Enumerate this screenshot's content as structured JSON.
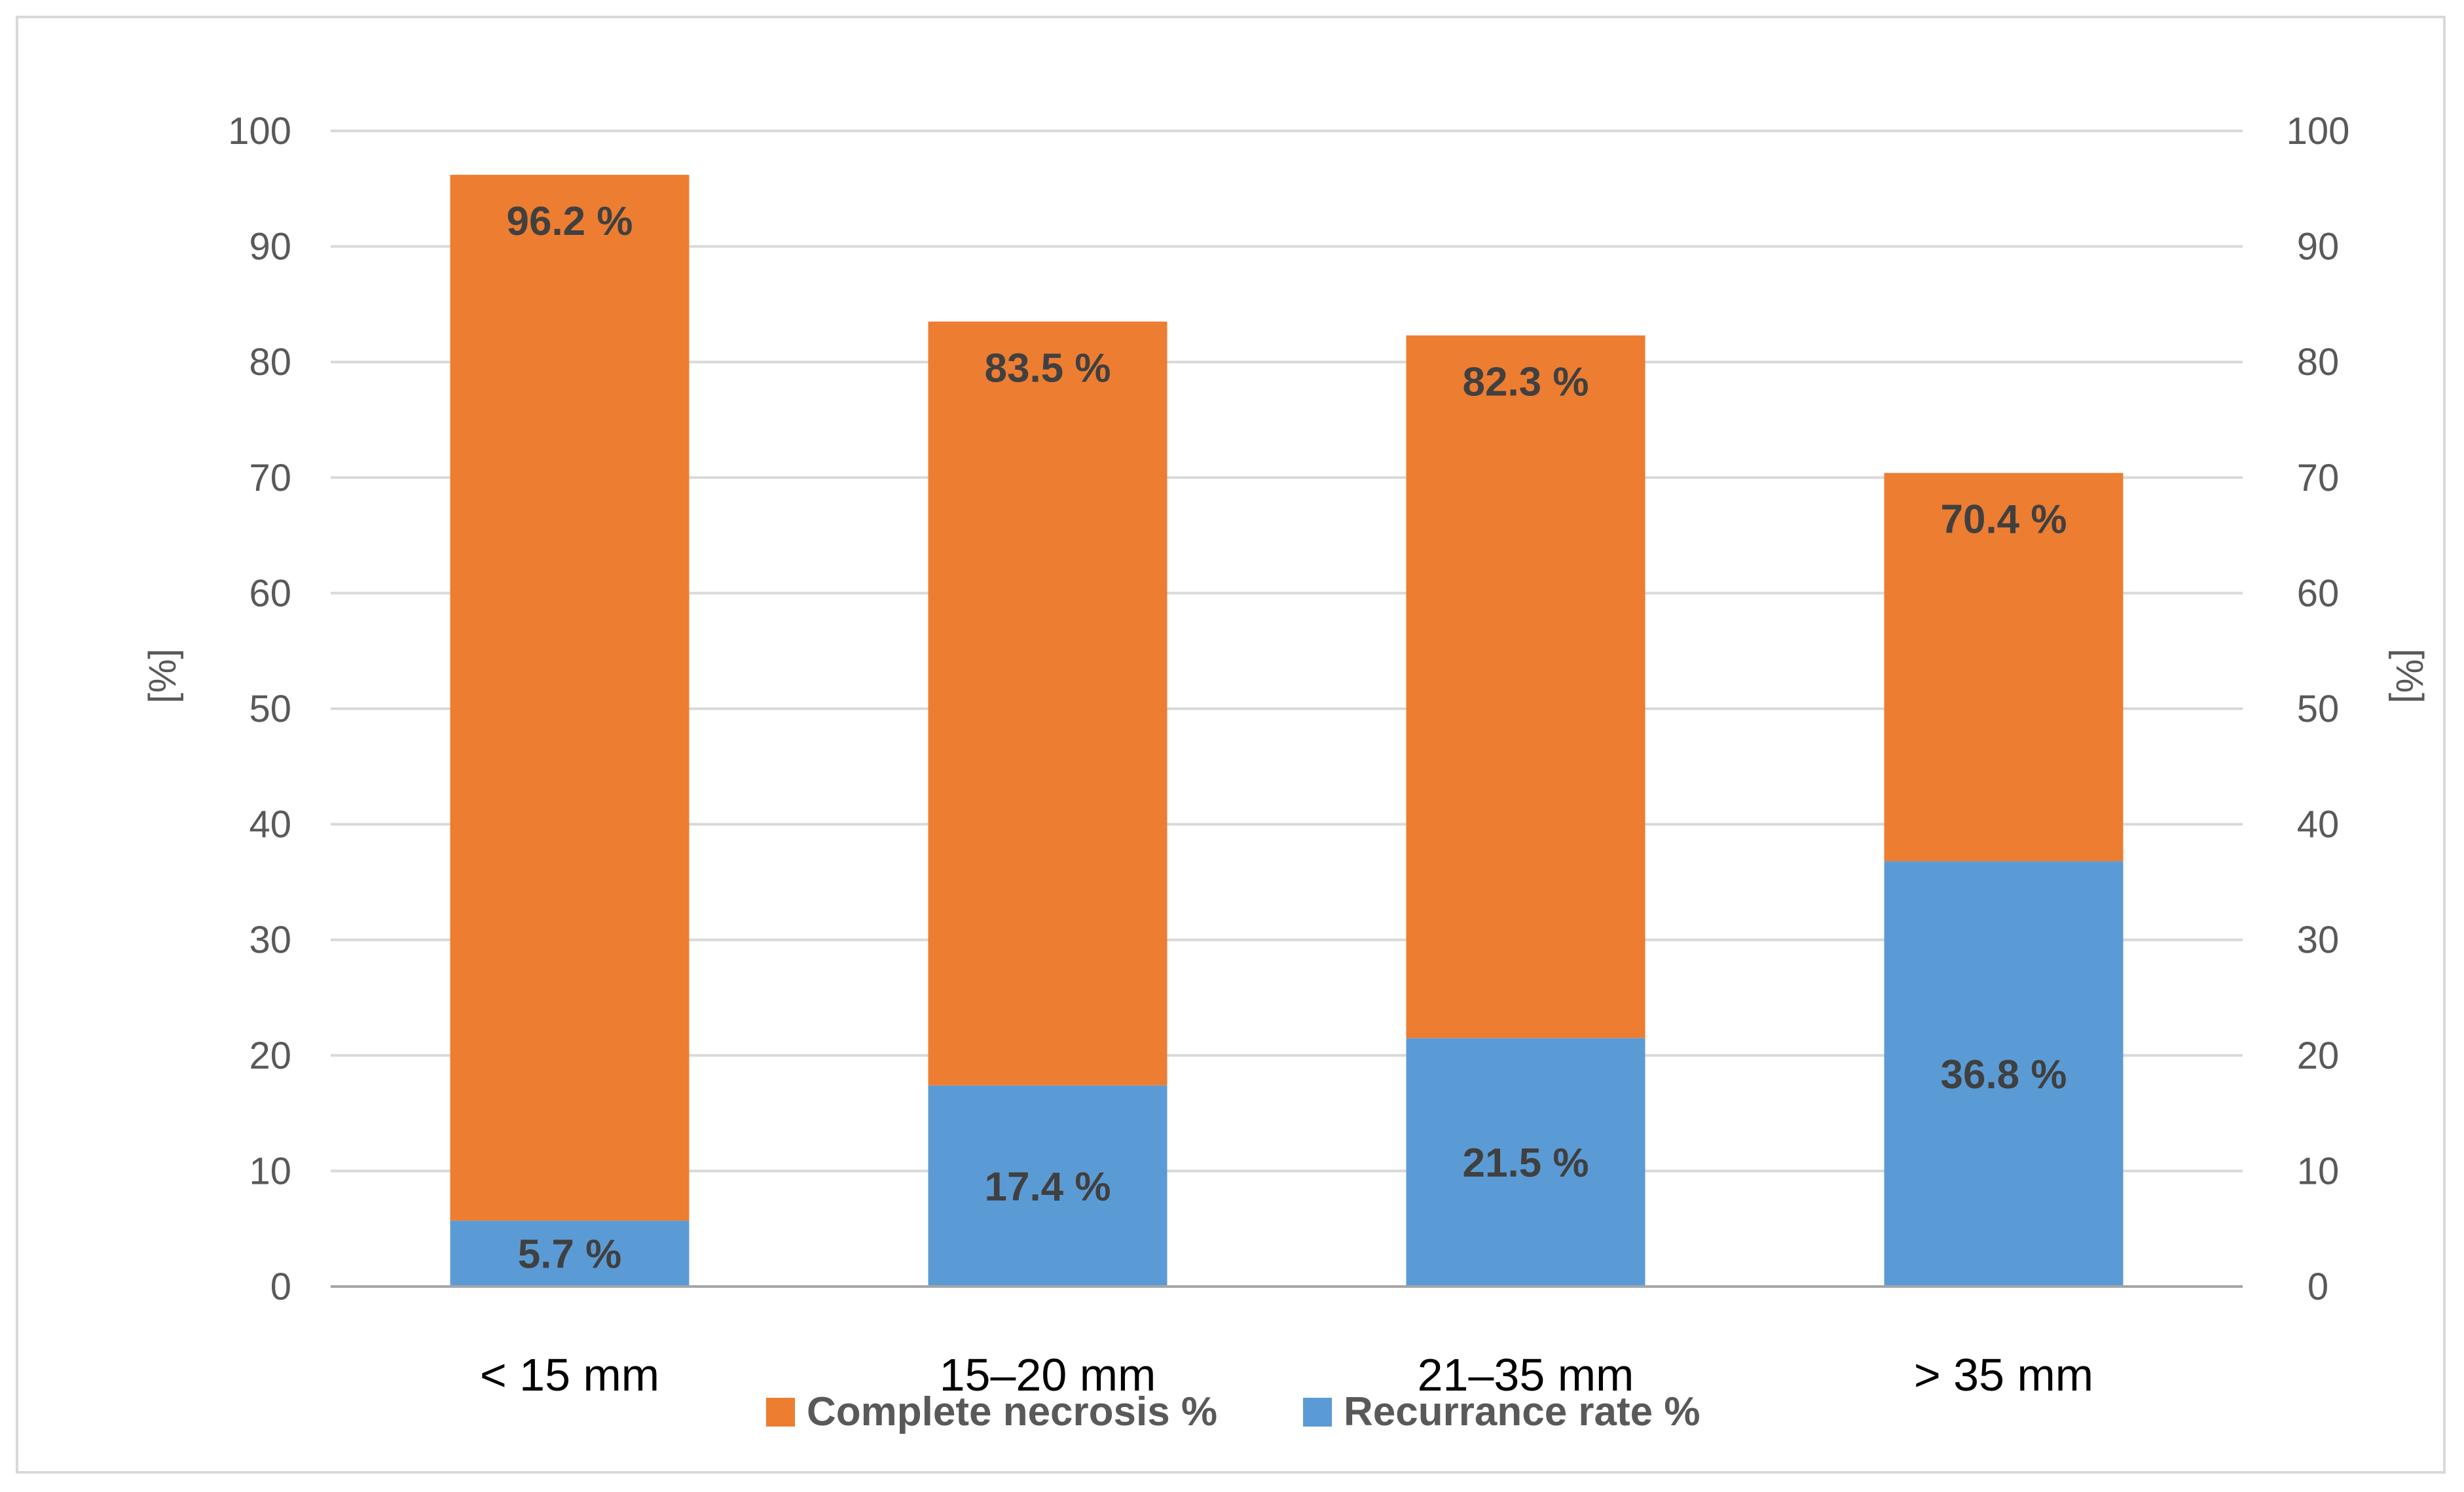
{
  "chart_data": {
    "type": "bar",
    "stacked": true,
    "categories": [
      "< 15 mm",
      "15–20 mm",
      "21–35 mm",
      "> 35 mm"
    ],
    "series": [
      {
        "name": "Recurrance rate %",
        "values": [
          5.7,
          17.4,
          21.5,
          36.8
        ],
        "labels": [
          "5.7 %",
          "17.4 %",
          "21.5 %",
          "36.8 %"
        ],
        "color": "#5b9bd5"
      },
      {
        "name": "Complete necrosis %",
        "values": [
          90.5,
          66.1,
          60.8,
          33.6
        ],
        "totals": [
          96.2,
          83.5,
          82.3,
          70.4
        ],
        "labels": [
          "96.2 %",
          "83.5 %",
          "82.3 %",
          "70.4 %"
        ],
        "color": "#ed7d31"
      }
    ],
    "legend_order": [
      "Complete necrosis %",
      "Recurrance rate %"
    ],
    "ylabel": "[%]",
    "y2label": "[%]",
    "ylim": [
      0,
      100
    ],
    "yticks": [
      0,
      10,
      20,
      30,
      40,
      50,
      60,
      70,
      80,
      90,
      100
    ],
    "grid": true,
    "legend_position": "bottom",
    "colors": {
      "gridline": "#d9d9d9",
      "axis_line": "#a6a6a6",
      "tick_text": "#595959",
      "label_text": "#404040"
    }
  }
}
